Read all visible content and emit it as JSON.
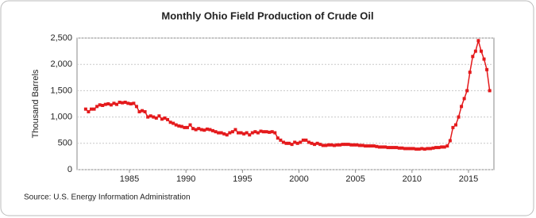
{
  "chart_data": {
    "type": "line",
    "title": "Monthly Ohio Field Production of Crude Oil",
    "y_label": "Thousand Barrels",
    "source": "Source: U.S. Energy Information Administration",
    "x": [
      1981.125,
      1981.375,
      1981.625,
      1981.875,
      1982.125,
      1982.375,
      1982.625,
      1982.875,
      1983.125,
      1983.375,
      1983.625,
      1983.875,
      1984.125,
      1984.375,
      1984.625,
      1984.875,
      1985.125,
      1985.375,
      1985.625,
      1985.875,
      1986.125,
      1986.375,
      1986.625,
      1986.875,
      1987.125,
      1987.375,
      1987.625,
      1987.875,
      1988.125,
      1988.375,
      1988.625,
      1988.875,
      1989.125,
      1989.375,
      1989.625,
      1989.875,
      1990.125,
      1990.375,
      1990.625,
      1990.875,
      1991.125,
      1991.375,
      1991.625,
      1991.875,
      1992.125,
      1992.375,
      1992.625,
      1992.875,
      1993.125,
      1993.375,
      1993.625,
      1993.875,
      1994.125,
      1994.375,
      1994.625,
      1994.875,
      1995.125,
      1995.375,
      1995.625,
      1995.875,
      1996.125,
      1996.375,
      1996.625,
      1996.875,
      1997.125,
      1997.375,
      1997.625,
      1997.875,
      1998.125,
      1998.375,
      1998.625,
      1998.875,
      1999.125,
      1999.375,
      1999.625,
      1999.875,
      2000.125,
      2000.375,
      2000.625,
      2000.875,
      2001.125,
      2001.375,
      2001.625,
      2001.875,
      2002.125,
      2002.375,
      2002.625,
      2002.875,
      2003.125,
      2003.375,
      2003.625,
      2003.875,
      2004.125,
      2004.375,
      2004.625,
      2004.875,
      2005.125,
      2005.375,
      2005.625,
      2005.875,
      2006.125,
      2006.375,
      2006.625,
      2006.875,
      2007.125,
      2007.375,
      2007.625,
      2007.875,
      2008.125,
      2008.375,
      2008.625,
      2008.875,
      2009.125,
      2009.375,
      2009.625,
      2009.875,
      2010.125,
      2010.375,
      2010.625,
      2010.875,
      2011.125,
      2011.375,
      2011.625,
      2011.875,
      2012.125,
      2012.375,
      2012.625,
      2012.875,
      2013.125,
      2013.375,
      2013.625,
      2013.875,
      2014.125,
      2014.375,
      2014.625,
      2014.875,
      2015.125,
      2015.375,
      2015.625,
      2015.875,
      2016.125,
      2016.375,
      2016.625,
      2016.875
    ],
    "series": [
      {
        "name": "Ohio",
        "color": "#e41a1c",
        "values": [
          1150,
          1100,
          1150,
          1150,
          1200,
          1230,
          1220,
          1240,
          1250,
          1230,
          1260,
          1240,
          1280,
          1270,
          1280,
          1260,
          1250,
          1260,
          1200,
          1100,
          1120,
          1100,
          1000,
          1020,
          1000,
          980,
          1020,
          960,
          980,
          950,
          900,
          880,
          850,
          830,
          820,
          800,
          800,
          850,
          780,
          760,
          780,
          760,
          750,
          770,
          760,
          740,
          720,
          700,
          700,
          680,
          660,
          700,
          720,
          760,
          700,
          700,
          680,
          700,
          660,
          700,
          720,
          700,
          730,
          720,
          720,
          710,
          720,
          700,
          600,
          560,
          520,
          500,
          500,
          480,
          520,
          500,
          520,
          560,
          560,
          520,
          500,
          480,
          500,
          480,
          460,
          460,
          470,
          470,
          460,
          470,
          470,
          480,
          480,
          480,
          470,
          470,
          470,
          460,
          460,
          450,
          450,
          450,
          450,
          440,
          430,
          430,
          430,
          420,
          420,
          420,
          420,
          410,
          410,
          400,
          400,
          400,
          400,
          390,
          390,
          400,
          390,
          400,
          400,
          410,
          420,
          420,
          430,
          430,
          450,
          550,
          800,
          850,
          1000,
          1200,
          1350,
          1500,
          1850,
          2150,
          2250,
          2450,
          2250,
          2100,
          1900,
          1500
        ]
      }
    ],
    "xlim": [
      1980.36,
      2017.25
    ],
    "xticks": [
      1985,
      1990,
      1995,
      2000,
      2005,
      2010,
      2015
    ],
    "ylim": [
      0,
      2500
    ],
    "yticks": [
      0,
      500,
      {
        "value": 1000,
        "label": "1,000"
      },
      {
        "value": 1500,
        "label": "1,500"
      },
      {
        "value": 2000,
        "label": "2,000"
      },
      {
        "value": 2500,
        "label": "2,500"
      }
    ],
    "grid": true
  }
}
